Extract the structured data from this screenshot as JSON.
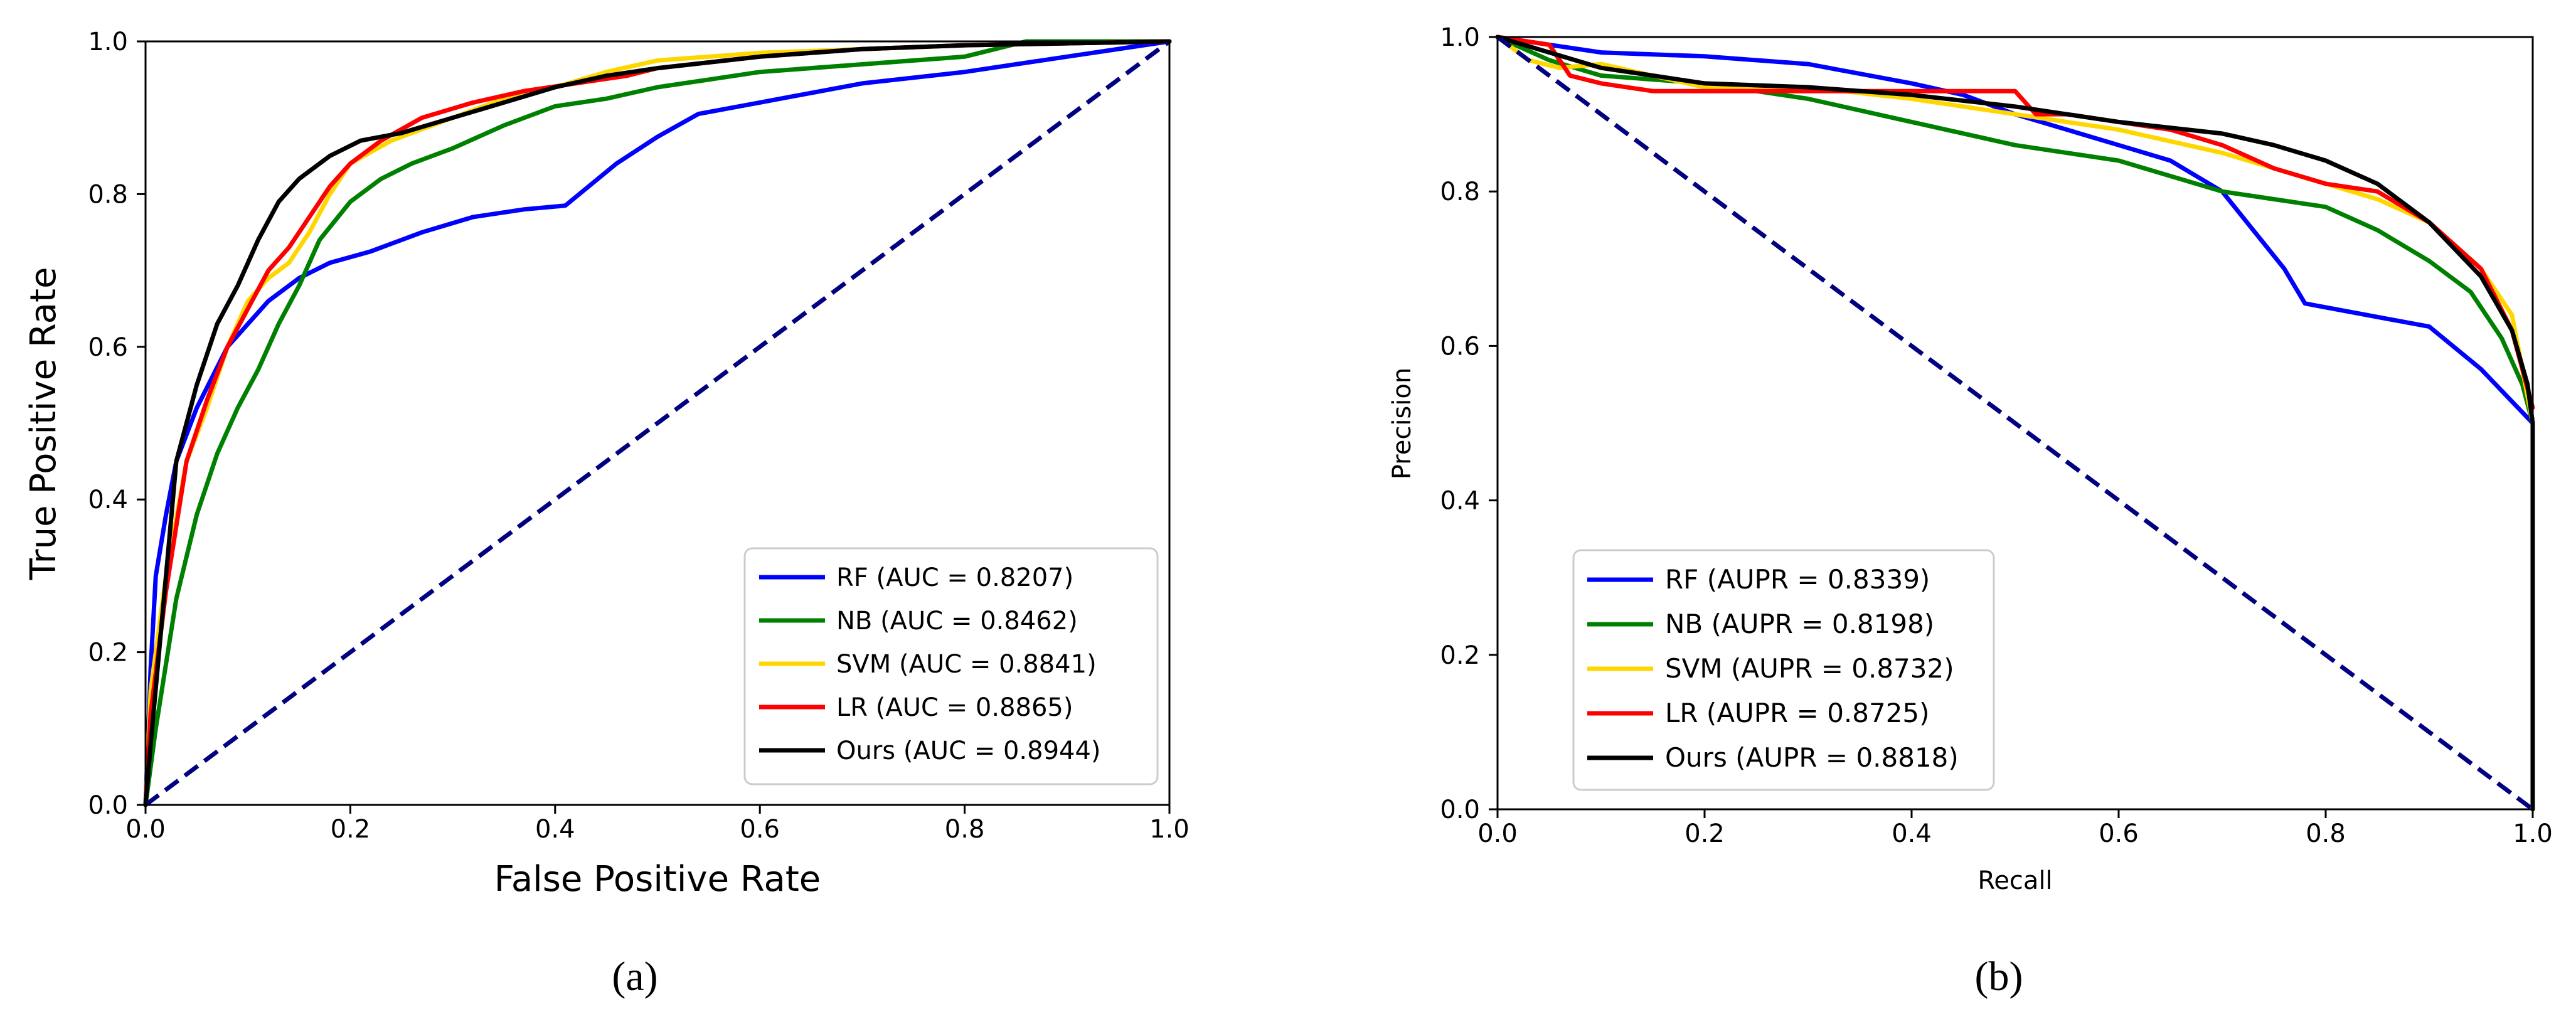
{
  "chart_data": [
    {
      "id": "a",
      "type": "line",
      "caption": "(a)",
      "xlabel": "False Positive Rate",
      "ylabel": "True Positive Rate",
      "xlim": [
        0,
        1
      ],
      "ylim": [
        0,
        1
      ],
      "xticks": [
        "0.0",
        "0.2",
        "0.4",
        "0.6",
        "0.8",
        "1.0"
      ],
      "yticks": [
        "0.0",
        "0.2",
        "0.4",
        "0.6",
        "0.8",
        "1.0"
      ],
      "grid": false,
      "legend_position": "bottom-right",
      "baseline": {
        "x": [
          0,
          1
        ],
        "y": [
          0,
          1
        ],
        "color": "#000080",
        "style": "dashed"
      },
      "series": [
        {
          "name": "RF (AUC = 0.8207)",
          "color": "#0000ff",
          "x": [
            0,
            0.005,
            0.01,
            0.02,
            0.03,
            0.05,
            0.08,
            0.12,
            0.15,
            0.18,
            0.22,
            0.27,
            0.32,
            0.37,
            0.41,
            0.46,
            0.5,
            0.54,
            0.6,
            0.7,
            0.8,
            0.9,
            1.0
          ],
          "y": [
            0,
            0.18,
            0.3,
            0.38,
            0.45,
            0.52,
            0.6,
            0.66,
            0.69,
            0.71,
            0.725,
            0.75,
            0.77,
            0.78,
            0.785,
            0.84,
            0.875,
            0.905,
            0.92,
            0.945,
            0.96,
            0.98,
            1.0
          ]
        },
        {
          "name": "NB (AUC = 0.8462)",
          "color": "#008000",
          "x": [
            0,
            0.01,
            0.03,
            0.05,
            0.07,
            0.09,
            0.11,
            0.13,
            0.15,
            0.17,
            0.2,
            0.23,
            0.26,
            0.3,
            0.35,
            0.4,
            0.45,
            0.5,
            0.55,
            0.6,
            0.7,
            0.8,
            0.86,
            1.0
          ],
          "y": [
            0,
            0.1,
            0.27,
            0.38,
            0.46,
            0.52,
            0.57,
            0.63,
            0.68,
            0.74,
            0.79,
            0.82,
            0.84,
            0.86,
            0.89,
            0.915,
            0.925,
            0.94,
            0.95,
            0.96,
            0.97,
            0.98,
            1.0,
            1.0
          ]
        },
        {
          "name": "SVM (AUC = 0.8841)",
          "color": "#ffd700",
          "x": [
            0,
            0.005,
            0.02,
            0.04,
            0.06,
            0.08,
            0.1,
            0.12,
            0.14,
            0.16,
            0.18,
            0.2,
            0.24,
            0.28,
            0.32,
            0.36,
            0.4,
            0.45,
            0.5,
            0.6,
            0.7,
            0.8,
            1.0
          ],
          "y": [
            0,
            0.15,
            0.3,
            0.45,
            0.52,
            0.6,
            0.66,
            0.69,
            0.71,
            0.75,
            0.8,
            0.84,
            0.87,
            0.89,
            0.91,
            0.93,
            0.94,
            0.96,
            0.975,
            0.985,
            0.99,
            0.995,
            1.0
          ]
        },
        {
          "name": "LR (AUC = 0.8865)",
          "color": "#ff0000",
          "x": [
            0,
            0.005,
            0.02,
            0.04,
            0.06,
            0.08,
            0.1,
            0.12,
            0.14,
            0.16,
            0.18,
            0.2,
            0.23,
            0.27,
            0.32,
            0.37,
            0.42,
            0.47,
            0.5,
            0.6,
            0.7,
            0.8,
            1.0
          ],
          "y": [
            0,
            0.12,
            0.28,
            0.45,
            0.53,
            0.6,
            0.65,
            0.7,
            0.73,
            0.77,
            0.81,
            0.84,
            0.87,
            0.9,
            0.92,
            0.935,
            0.945,
            0.955,
            0.965,
            0.98,
            0.99,
            0.995,
            1.0
          ]
        },
        {
          "name": "Ours (AUC = 0.8944)",
          "color": "#000000",
          "x": [
            0,
            0.005,
            0.02,
            0.03,
            0.05,
            0.07,
            0.09,
            0.11,
            0.13,
            0.15,
            0.18,
            0.21,
            0.25,
            0.3,
            0.35,
            0.4,
            0.45,
            0.5,
            0.6,
            0.7,
            0.8,
            1.0
          ],
          "y": [
            0,
            0.08,
            0.3,
            0.45,
            0.55,
            0.63,
            0.68,
            0.74,
            0.79,
            0.82,
            0.85,
            0.87,
            0.88,
            0.9,
            0.92,
            0.94,
            0.955,
            0.965,
            0.98,
            0.99,
            0.995,
            1.0
          ]
        }
      ]
    },
    {
      "id": "b",
      "type": "line",
      "caption": "(b)",
      "xlabel": "Recall",
      "ylabel": "Precision",
      "xlim": [
        0,
        1
      ],
      "ylim": [
        0,
        1
      ],
      "xticks": [
        "0.0",
        "0.2",
        "0.4",
        "0.6",
        "0.8",
        "1.0"
      ],
      "yticks": [
        "0.0",
        "0.2",
        "0.4",
        "0.6",
        "0.8",
        "1.0"
      ],
      "grid": false,
      "legend_position": "bottom-left",
      "baseline": {
        "x": [
          0,
          1
        ],
        "y": [
          1,
          0
        ],
        "color": "#000080",
        "style": "dashed"
      },
      "series": [
        {
          "name": "RF (AUPR = 0.8339)",
          "color": "#0000ff",
          "x": [
            0,
            0.05,
            0.1,
            0.2,
            0.3,
            0.4,
            0.45,
            0.5,
            0.55,
            0.6,
            0.65,
            0.7,
            0.73,
            0.76,
            0.78,
            0.84,
            0.9,
            0.95,
            1.0
          ],
          "y": [
            1.0,
            0.99,
            0.98,
            0.975,
            0.965,
            0.94,
            0.925,
            0.9,
            0.88,
            0.86,
            0.84,
            0.8,
            0.75,
            0.7,
            0.655,
            0.64,
            0.625,
            0.57,
            0.5
          ]
        },
        {
          "name": "NB (AUPR = 0.8198)",
          "color": "#008000",
          "x": [
            0,
            0.05,
            0.1,
            0.2,
            0.3,
            0.4,
            0.5,
            0.55,
            0.6,
            0.65,
            0.7,
            0.75,
            0.8,
            0.85,
            0.9,
            0.94,
            0.97,
            0.99,
            1.0
          ],
          "y": [
            1.0,
            0.97,
            0.95,
            0.94,
            0.92,
            0.89,
            0.86,
            0.85,
            0.84,
            0.82,
            0.8,
            0.79,
            0.78,
            0.75,
            0.71,
            0.67,
            0.61,
            0.55,
            0.5
          ]
        },
        {
          "name": "SVM (AUPR = 0.8732)",
          "color": "#ffd700",
          "x": [
            0,
            0.03,
            0.06,
            0.1,
            0.15,
            0.2,
            0.3,
            0.4,
            0.5,
            0.6,
            0.65,
            0.7,
            0.75,
            0.8,
            0.85,
            0.9,
            0.95,
            0.98,
            1.0
          ],
          "y": [
            1.0,
            0.97,
            0.96,
            0.965,
            0.95,
            0.935,
            0.935,
            0.92,
            0.9,
            0.88,
            0.865,
            0.85,
            0.83,
            0.81,
            0.79,
            0.76,
            0.7,
            0.64,
            0.5
          ]
        },
        {
          "name": "LR (AUPR = 0.8725)",
          "color": "#ff0000",
          "x": [
            0,
            0.05,
            0.07,
            0.1,
            0.15,
            0.2,
            0.3,
            0.4,
            0.45,
            0.5,
            0.52,
            0.55,
            0.6,
            0.65,
            0.7,
            0.75,
            0.8,
            0.85,
            0.9,
            0.95,
            0.98,
            1.0
          ],
          "y": [
            1.0,
            0.99,
            0.95,
            0.94,
            0.93,
            0.93,
            0.93,
            0.93,
            0.93,
            0.93,
            0.9,
            0.9,
            0.89,
            0.88,
            0.86,
            0.83,
            0.81,
            0.8,
            0.76,
            0.7,
            0.62,
            0.52
          ]
        },
        {
          "name": "Ours (AUPR = 0.8818)",
          "color": "#000000",
          "x": [
            0,
            0.05,
            0.1,
            0.15,
            0.2,
            0.3,
            0.4,
            0.5,
            0.6,
            0.7,
            0.75,
            0.8,
            0.85,
            0.9,
            0.95,
            0.98,
            0.995,
            1.0,
            1.0
          ],
          "y": [
            1.0,
            0.98,
            0.96,
            0.95,
            0.94,
            0.935,
            0.925,
            0.91,
            0.89,
            0.875,
            0.86,
            0.84,
            0.81,
            0.76,
            0.69,
            0.62,
            0.55,
            0.5,
            0.0
          ]
        }
      ]
    }
  ]
}
